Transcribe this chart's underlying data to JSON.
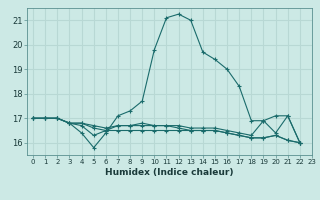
{
  "title": "",
  "xlabel": "Humidex (Indice chaleur)",
  "bg_color": "#cce9e5",
  "grid_color": "#b8d8d4",
  "line_color": "#1a6b6b",
  "x_min": 0,
  "x_max": 23,
  "y_min": 15.5,
  "y_max": 21.5,
  "yticks": [
    16,
    17,
    18,
    19,
    20,
    21
  ],
  "xticks": [
    0,
    1,
    2,
    3,
    4,
    5,
    6,
    7,
    8,
    9,
    10,
    11,
    12,
    13,
    14,
    15,
    16,
    17,
    18,
    19,
    20,
    21,
    22,
    23
  ],
  "series": [
    [
      17.0,
      17.0,
      17.0,
      16.8,
      16.4,
      15.8,
      16.4,
      17.1,
      17.3,
      17.7,
      19.8,
      21.1,
      21.25,
      21.0,
      19.7,
      19.4,
      19.0,
      18.3,
      16.9,
      16.9,
      17.1,
      17.1,
      16.0,
      null
    ],
    [
      17.0,
      17.0,
      17.0,
      16.8,
      16.7,
      16.3,
      16.5,
      16.7,
      16.7,
      16.8,
      16.7,
      16.7,
      16.6,
      16.5,
      16.5,
      16.5,
      16.4,
      16.3,
      16.2,
      16.2,
      16.3,
      16.1,
      16.0,
      null
    ],
    [
      17.0,
      17.0,
      17.0,
      16.8,
      16.8,
      16.6,
      16.5,
      16.5,
      16.5,
      16.5,
      16.5,
      16.5,
      16.5,
      16.5,
      16.5,
      16.5,
      16.4,
      16.3,
      16.2,
      16.2,
      16.3,
      16.1,
      16.0,
      null
    ],
    [
      17.0,
      17.0,
      17.0,
      16.8,
      16.8,
      16.7,
      16.6,
      16.7,
      16.7,
      16.7,
      16.7,
      16.7,
      16.7,
      16.6,
      16.6,
      16.6,
      16.5,
      16.4,
      16.3,
      16.9,
      16.4,
      17.1,
      16.0,
      null
    ]
  ]
}
